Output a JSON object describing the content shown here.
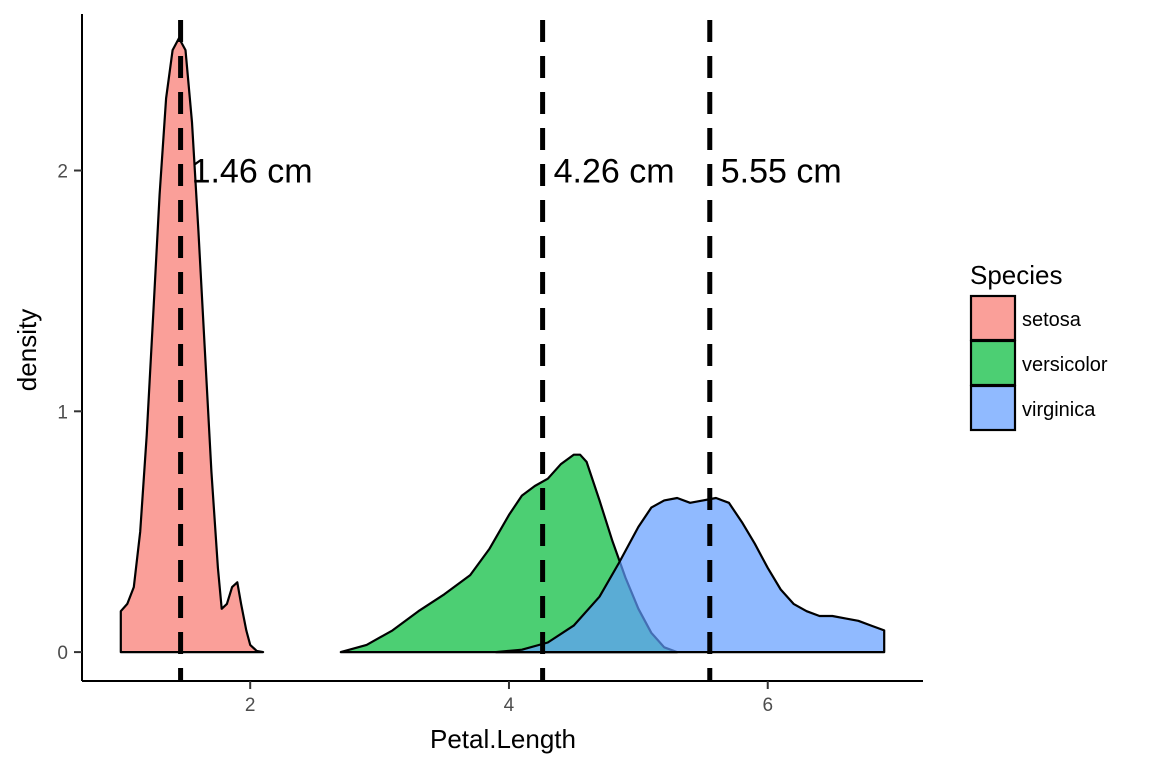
{
  "chart_data": {
    "type": "area",
    "xlabel": "Petal.Length",
    "ylabel": "density",
    "xlim": [
      0.7,
      7.2
    ],
    "ylim": [
      -0.12,
      2.65
    ],
    "x_ticks": [
      2,
      4,
      6
    ],
    "y_ticks": [
      0,
      1,
      2
    ],
    "legend": {
      "title": "Species",
      "placement": "right"
    },
    "series": [
      {
        "name": "setosa",
        "color": "#F8766D",
        "points": [
          [
            1.0,
            0.0
          ],
          [
            1.0,
            0.17
          ],
          [
            1.05,
            0.2
          ],
          [
            1.1,
            0.27
          ],
          [
            1.15,
            0.5
          ],
          [
            1.2,
            0.9
          ],
          [
            1.25,
            1.4
          ],
          [
            1.3,
            1.9
          ],
          [
            1.35,
            2.3
          ],
          [
            1.4,
            2.5
          ],
          [
            1.45,
            2.55
          ],
          [
            1.5,
            2.5
          ],
          [
            1.55,
            2.2
          ],
          [
            1.6,
            1.75
          ],
          [
            1.65,
            1.25
          ],
          [
            1.7,
            0.75
          ],
          [
            1.75,
            0.35
          ],
          [
            1.78,
            0.18
          ],
          [
            1.82,
            0.2
          ],
          [
            1.86,
            0.27
          ],
          [
            1.9,
            0.29
          ],
          [
            1.93,
            0.2
          ],
          [
            1.97,
            0.09
          ],
          [
            2.0,
            0.03
          ],
          [
            2.05,
            0.005
          ],
          [
            2.1,
            0.0
          ]
        ]
      },
      {
        "name": "versicolor",
        "color": "#00BA38",
        "points": [
          [
            2.7,
            0.0
          ],
          [
            2.9,
            0.03
          ],
          [
            3.1,
            0.09
          ],
          [
            3.3,
            0.17
          ],
          [
            3.5,
            0.24
          ],
          [
            3.7,
            0.32
          ],
          [
            3.85,
            0.43
          ],
          [
            4.0,
            0.57
          ],
          [
            4.1,
            0.65
          ],
          [
            4.2,
            0.69
          ],
          [
            4.3,
            0.72
          ],
          [
            4.4,
            0.78
          ],
          [
            4.5,
            0.82
          ],
          [
            4.55,
            0.82
          ],
          [
            4.6,
            0.79
          ],
          [
            4.7,
            0.63
          ],
          [
            4.8,
            0.46
          ],
          [
            4.9,
            0.31
          ],
          [
            5.0,
            0.18
          ],
          [
            5.1,
            0.08
          ],
          [
            5.2,
            0.02
          ],
          [
            5.3,
            0.0
          ]
        ]
      },
      {
        "name": "virginica",
        "color": "#619CFF",
        "points": [
          [
            3.9,
            0.0
          ],
          [
            4.1,
            0.01
          ],
          [
            4.3,
            0.04
          ],
          [
            4.5,
            0.11
          ],
          [
            4.7,
            0.23
          ],
          [
            4.85,
            0.37
          ],
          [
            5.0,
            0.52
          ],
          [
            5.1,
            0.6
          ],
          [
            5.2,
            0.63
          ],
          [
            5.3,
            0.64
          ],
          [
            5.4,
            0.62
          ],
          [
            5.5,
            0.63
          ],
          [
            5.6,
            0.64
          ],
          [
            5.7,
            0.62
          ],
          [
            5.8,
            0.54
          ],
          [
            5.9,
            0.45
          ],
          [
            6.0,
            0.35
          ],
          [
            6.1,
            0.26
          ],
          [
            6.2,
            0.2
          ],
          [
            6.3,
            0.17
          ],
          [
            6.4,
            0.15
          ],
          [
            6.5,
            0.15
          ],
          [
            6.6,
            0.14
          ],
          [
            6.7,
            0.13
          ],
          [
            6.8,
            0.11
          ],
          [
            6.9,
            0.09
          ],
          [
            6.9,
            0.0
          ]
        ]
      }
    ],
    "mean_lines": [
      {
        "series": "setosa",
        "x": 1.462,
        "label": "1.46 cm",
        "label_y": 2.0
      },
      {
        "series": "versicolor",
        "x": 4.26,
        "label": "4.26 cm",
        "label_y": 2.0
      },
      {
        "series": "virginica",
        "x": 5.552,
        "label": "5.55 cm",
        "label_y": 2.0
      }
    ],
    "grid": false
  }
}
